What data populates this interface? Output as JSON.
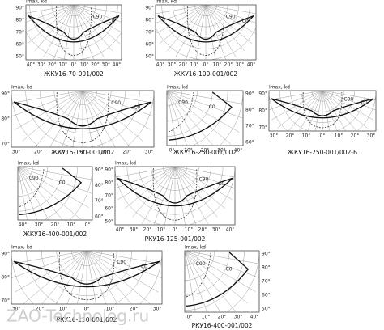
{
  "panels": [
    {
      "caption": "ЖКУ16-70-001/002",
      "unit": "Imax, kd",
      "curves": [
        "C90",
        "C0"
      ],
      "angles": [
        "90°",
        "80°",
        "70°",
        "60°",
        "50°"
      ],
      "bottom": [
        "40°",
        "30°",
        "20°",
        "10°",
        "0°",
        "10°",
        "20°",
        "30°",
        "40°"
      ]
    },
    {
      "caption": "ЖКУ16-100-001/002",
      "unit": "Imax, kd",
      "curves": [
        "C90",
        "C0"
      ],
      "angles": [
        "90°",
        "80°",
        "70°",
        "60°",
        "50°"
      ],
      "bottom": [
        "40°",
        "30°",
        "20°",
        "10°",
        "0°",
        "10°",
        "20°",
        "30°",
        "40°"
      ]
    },
    {
      "caption": "ЖКУ16-150-001/002",
      "unit": "Imax, kd",
      "curves": [
        "C90",
        "C0"
      ],
      "angles": [
        "90°",
        "80°",
        "70°"
      ],
      "bottom": [
        "30°",
        "20°",
        "10°",
        "0°",
        "10°",
        "20°",
        "30°"
      ]
    },
    {
      "caption": "ЖКУ16-250-001/002",
      "unit": "Imax, kd",
      "curves": [
        "C90",
        "C0"
      ],
      "angles": [
        "90°",
        "80°",
        "70°",
        "60°"
      ],
      "bottom": [
        "0°",
        "10°",
        "20°",
        "30°",
        "40°"
      ]
    },
    {
      "caption": "ЖКУ16-250-001/002-Б",
      "unit": "Imax, kd",
      "curves": [
        "C90",
        "C0"
      ],
      "angles": [
        "90°",
        "80°",
        "70°"
      ],
      "bottom": [
        "30°",
        "20°",
        "10°",
        "0°",
        "10°",
        "20°",
        "30°"
      ]
    },
    {
      "caption": "ЖКУ16-400-001/002",
      "unit": "Imax, kd",
      "curves": [
        "C90",
        "C0"
      ],
      "angles": [
        "90°",
        "80°",
        "70°",
        "60°"
      ],
      "bottom": [
        "40°",
        "30°",
        "20°",
        "10°",
        "0°"
      ]
    },
    {
      "caption": "РКУ16-125-001/002",
      "unit": "Imax, kd",
      "curves": [
        "C90",
        "C0"
      ],
      "angles": [
        "90°",
        "80°",
        "70°",
        "60°",
        "50°"
      ],
      "bottom": [
        "40°",
        "30°",
        "20°",
        "10°",
        "0°",
        "10°",
        "20°",
        "30°",
        "40°"
      ]
    },
    {
      "caption": "РКУ16-250-001/002",
      "unit": "Imax, kd",
      "curves": [
        "C90",
        "C0"
      ],
      "angles": [
        "90°",
        "80°",
        "70°"
      ],
      "bottom": [
        "30°",
        "20°",
        "10°",
        "0°",
        "10°",
        "20°",
        "30°"
      ]
    },
    {
      "caption": "РКУ16-400-001/002",
      "unit": "Imax, kd",
      "curves": [
        "C90",
        "C0"
      ],
      "angles": [
        "90°",
        "80°",
        "70°",
        "60°",
        "50°"
      ],
      "bottom": [
        "0°",
        "10°",
        "20°",
        "30°",
        "40°"
      ]
    }
  ],
  "watermark": "ZAO-Technolog.ru"
}
